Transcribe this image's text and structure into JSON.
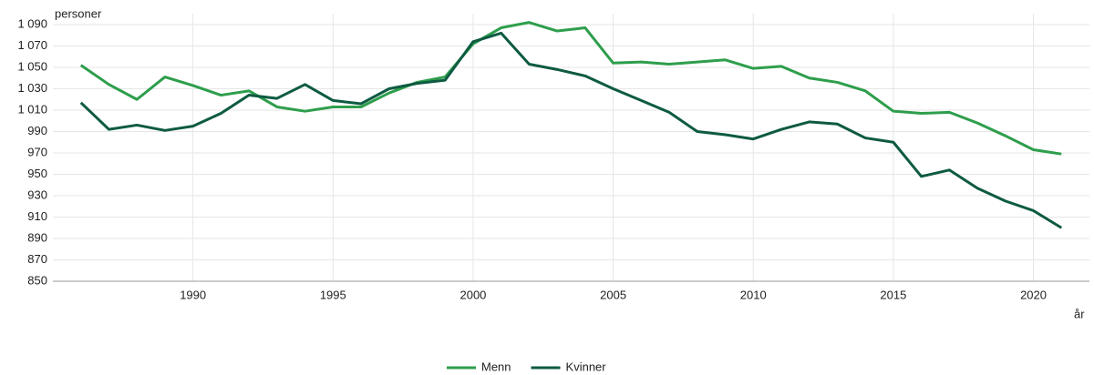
{
  "chart_data": {
    "type": "line",
    "y_label": "personer",
    "x_label": "år",
    "x": [
      1986,
      1987,
      1988,
      1989,
      1990,
      1991,
      1992,
      1993,
      1994,
      1995,
      1996,
      1997,
      1998,
      1999,
      2000,
      2001,
      2002,
      2003,
      2004,
      2005,
      2006,
      2007,
      2008,
      2009,
      2010,
      2011,
      2012,
      2013,
      2014,
      2015,
      2016,
      2017,
      2018,
      2019,
      2020,
      2021
    ],
    "series": [
      {
        "name": "Menn",
        "color": "#2e9e4c",
        "values": [
          1052,
          1034,
          1020,
          1041,
          1033,
          1024,
          1028,
          1013,
          1009,
          1013,
          1013,
          1026,
          1036,
          1041,
          1072,
          1087,
          1092,
          1084,
          1087,
          1054,
          1055,
          1053,
          1055,
          1057,
          1049,
          1051,
          1040,
          1036,
          1028,
          1009,
          1007,
          1008,
          998,
          986,
          973,
          969
        ]
      },
      {
        "name": "Kvinner",
        "color": "#0e5a42",
        "values": [
          1017,
          992,
          996,
          991,
          995,
          1007,
          1024,
          1021,
          1034,
          1019,
          1016,
          1030,
          1035,
          1038,
          1074,
          1082,
          1053,
          1048,
          1042,
          1030,
          1019,
          1008,
          990,
          987,
          983,
          992,
          999,
          997,
          984,
          980,
          948,
          954,
          937,
          925,
          916,
          900
        ]
      }
    ],
    "xlim": [
      1985,
      2022
    ],
    "xticks": [
      1990,
      1995,
      2000,
      2005,
      2010,
      2015,
      2020
    ],
    "ylim": [
      850,
      1090
    ],
    "yticks": [
      {
        "value": 1090,
        "label": "1 090"
      },
      {
        "value": 1070,
        "label": "1 070"
      },
      {
        "value": 1050,
        "label": "1 050"
      },
      {
        "value": 1030,
        "label": "1 030"
      },
      {
        "value": 1010,
        "label": "1 010"
      },
      990,
      970,
      950,
      930,
      910,
      890,
      870,
      850
    ],
    "grid": true,
    "legend": "bottom"
  }
}
